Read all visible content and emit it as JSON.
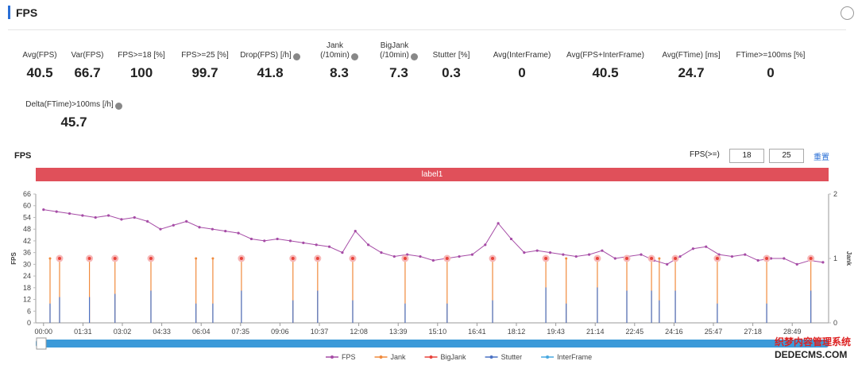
{
  "header": {
    "title": "FPS"
  },
  "metrics": [
    {
      "label": "Avg(FPS)",
      "value": "40.5"
    },
    {
      "label": "Var(FPS)",
      "value": "66.7"
    },
    {
      "label": "FPS>=18 [%]",
      "value": "100"
    },
    {
      "label": "FPS>=25 [%]",
      "value": "99.7"
    },
    {
      "label": "Drop(FPS) [/h]",
      "value": "41.8",
      "help": true
    },
    {
      "label": "Jank\n(/10min)",
      "value": "8.3",
      "help": true
    },
    {
      "label": "BigJank\n(/10min)",
      "value": "7.3",
      "help": true
    },
    {
      "label": "Stutter [%]",
      "value": "0.3"
    },
    {
      "label": "Avg(InterFrame)",
      "value": "0"
    },
    {
      "label": "Avg(FPS+InterFrame)",
      "value": "40.5"
    },
    {
      "label": "Avg(FTime) [ms]",
      "value": "24.7"
    },
    {
      "label": "FTime>=100ms [%]",
      "value": "0"
    },
    {
      "label": "Delta(FTime)>100ms [/h]",
      "value": "45.7",
      "help": true
    }
  ],
  "controls": {
    "label": "FPS(>=)",
    "input1": "18",
    "input2": "25",
    "reset": "重置"
  },
  "watermark": [
    "织梦内容管理系统",
    "DEDECMS.COM"
  ],
  "chart_data": {
    "type": "line",
    "title": "FPS",
    "band_label": "label1",
    "ylabel": "FPS",
    "y2label": "Jank",
    "xlim": [
      -18,
      1813
    ],
    "xticks": [
      {
        "value": 0,
        "label": "00:00"
      },
      {
        "value": 91,
        "label": "01:31"
      },
      {
        "value": 182,
        "label": "03:02"
      },
      {
        "value": 273,
        "label": "04:33"
      },
      {
        "value": 364,
        "label": "06:04"
      },
      {
        "value": 455,
        "label": "07:35"
      },
      {
        "value": 546,
        "label": "09:06"
      },
      {
        "value": 637,
        "label": "10:37"
      },
      {
        "value": 728,
        "label": "12:08"
      },
      {
        "value": 819,
        "label": "13:39"
      },
      {
        "value": 910,
        "label": "15:10"
      },
      {
        "value": 1001,
        "label": "16:41"
      },
      {
        "value": 1092,
        "label": "18:12"
      },
      {
        "value": 1183,
        "label": "19:43"
      },
      {
        "value": 1274,
        "label": "21:14"
      },
      {
        "value": 1365,
        "label": "22:45"
      },
      {
        "value": 1456,
        "label": "24:16"
      },
      {
        "value": 1547,
        "label": "25:47"
      },
      {
        "value": 1638,
        "label": "27:18"
      },
      {
        "value": 1729,
        "label": "28:49"
      }
    ],
    "ylim": [
      0,
      66
    ],
    "yticks": [
      0,
      6,
      12,
      18,
      24,
      30,
      36,
      42,
      48,
      54,
      60,
      66
    ],
    "y2lim": [
      0,
      2
    ],
    "y2ticks": [
      0,
      1,
      2
    ],
    "legend": "bottom",
    "grid": false,
    "series": [
      {
        "name": "FPS",
        "color": "#a64ca6",
        "x": [
          0,
          30,
          60,
          90,
          120,
          150,
          180,
          210,
          240,
          270,
          300,
          330,
          360,
          390,
          420,
          450,
          480,
          510,
          540,
          570,
          600,
          630,
          660,
          690,
          720,
          750,
          780,
          810,
          840,
          870,
          900,
          930,
          960,
          990,
          1020,
          1050,
          1080,
          1110,
          1140,
          1170,
          1200,
          1230,
          1260,
          1290,
          1320,
          1350,
          1380,
          1410,
          1440,
          1470,
          1500,
          1530,
          1560,
          1590,
          1620,
          1650,
          1680,
          1710,
          1740,
          1770,
          1800
        ],
        "values": [
          58,
          57,
          56,
          55,
          54,
          55,
          53,
          54,
          52,
          48,
          50,
          52,
          49,
          48,
          47,
          46,
          43,
          42,
          43,
          42,
          41,
          40,
          39,
          36,
          47,
          40,
          36,
          34,
          35,
          34,
          32,
          33,
          34,
          35,
          40,
          51,
          43,
          36,
          37,
          36,
          35,
          34,
          35,
          37,
          33,
          34,
          35,
          32,
          30,
          34,
          38,
          39,
          35,
          34,
          35,
          32,
          33,
          33,
          30,
          32,
          31
        ]
      },
      {
        "name": "Jank",
        "color": "#f08a3c",
        "axis": "y2",
        "x": [
          15,
          37,
          106,
          165,
          248,
          352,
          391,
          457,
          576,
          633,
          714,
          835,
          932,
          1037,
          1160,
          1207,
          1279,
          1347,
          1404,
          1422,
          1459,
          1556,
          1670,
          1772
        ],
        "values": [
          1,
          1,
          1,
          1,
          1,
          1,
          1,
          1,
          1,
          1,
          1,
          1,
          1,
          1,
          1,
          1,
          1,
          1,
          1,
          1,
          1,
          1,
          1,
          1
        ]
      },
      {
        "name": "BigJank",
        "color": "#e8423a",
        "axis": "y2",
        "x": [
          37,
          106,
          165,
          248,
          457,
          576,
          633,
          714,
          835,
          932,
          1037,
          1160,
          1279,
          1347,
          1404,
          1459,
          1556,
          1670,
          1772
        ],
        "values": [
          1,
          1,
          1,
          1,
          1,
          1,
          1,
          1,
          1,
          1,
          1,
          1,
          1,
          1,
          1,
          1,
          1,
          1,
          1
        ]
      },
      {
        "name": "Stutter",
        "color": "#4a72c4",
        "axis": "y2",
        "x": [
          15,
          37,
          106,
          165,
          248,
          352,
          391,
          457,
          576,
          633,
          714,
          835,
          932,
          1037,
          1160,
          1207,
          1279,
          1347,
          1404,
          1422,
          1459,
          1556,
          1670,
          1772
        ],
        "values": [
          0.3,
          0.4,
          0.4,
          0.45,
          0.5,
          0.3,
          0.3,
          0.5,
          0.35,
          0.5,
          0.35,
          0.3,
          0.3,
          0.35,
          0.55,
          0.3,
          0.55,
          0.5,
          0.5,
          0.35,
          0.5,
          0.3,
          0.3,
          0.5
        ]
      },
      {
        "name": "InterFrame",
        "color": "#48a8e0",
        "axis": "y2",
        "x": [],
        "values": []
      }
    ]
  }
}
